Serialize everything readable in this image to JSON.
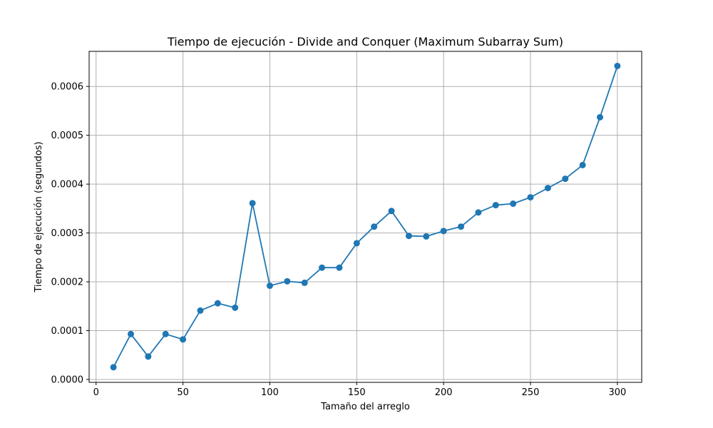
{
  "chart_data": {
    "type": "line",
    "title": "Tiempo de ejecución - Divide and Conquer (Maximum Subarray Sum)",
    "xlabel": "Tamaño del arreglo",
    "ylabel": "Tiempo de ejecución (segundos)",
    "xlim": [
      -4,
      314
    ],
    "ylim": [
      -5.9e-06,
      0.0006719
    ],
    "grid": true,
    "xticks": [
      0,
      50,
      100,
      150,
      200,
      250,
      300
    ],
    "xtick_labels": [
      "0",
      "50",
      "100",
      "150",
      "200",
      "250",
      "300"
    ],
    "yticks": [
      0,
      0.0001,
      0.0002,
      0.0003,
      0.0004,
      0.0005,
      0.0006
    ],
    "ytick_labels": [
      "0.0000",
      "0.0001",
      "0.0002",
      "0.0003",
      "0.0004",
      "0.0005",
      "0.0006"
    ],
    "series": [
      {
        "name": "Divide and Conquer",
        "color": "#1f77b4",
        "marker": "circle",
        "x": [
          10,
          20,
          30,
          40,
          50,
          60,
          70,
          80,
          90,
          100,
          110,
          120,
          130,
          140,
          150,
          160,
          170,
          180,
          190,
          200,
          210,
          220,
          230,
          240,
          250,
          260,
          270,
          280,
          290,
          300
        ],
        "y": [
          2.5e-05,
          9.3e-05,
          4.7e-05,
          9.3e-05,
          8.2e-05,
          0.000141,
          0.000156,
          0.000147,
          0.000361,
          0.000192,
          0.000201,
          0.000198,
          0.000229,
          0.000229,
          0.000279,
          0.000313,
          0.000345,
          0.000294,
          0.000293,
          0.000304,
          0.000313,
          0.000342,
          0.000357,
          0.00036,
          0.000373,
          0.000392,
          0.000411,
          0.000439,
          0.000537,
          0.000642
        ]
      }
    ]
  }
}
